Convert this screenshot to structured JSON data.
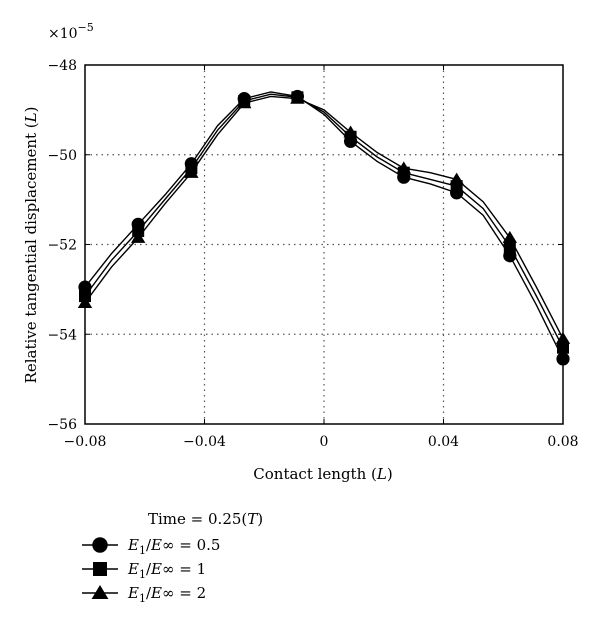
{
  "chart_data": {
    "type": "line",
    "title": "",
    "xlabel": "Contact length (L)",
    "ylabel": "Relative tangential displacement (L)",
    "y_multiplier": "×10−5",
    "xlim": [
      -0.08,
      0.08
    ],
    "ylim": [
      -56,
      -48
    ],
    "x_ticks": [
      -0.08,
      -0.04,
      0,
      0.04,
      0.08
    ],
    "x_tick_labels": [
      "−0.08",
      "−0.04",
      "0",
      "0.04",
      "0.08"
    ],
    "y_ticks": [
      -56,
      -54,
      -52,
      -50,
      -48
    ],
    "y_tick_labels": [
      "−56",
      "−54",
      "−52",
      "−50",
      "−48"
    ],
    "grid": "dotted",
    "legend_title": "Time = 0.25(T)",
    "legend_position": "bottom-left",
    "series": [
      {
        "name": "E1/E∞ = 0.5",
        "marker": "circle",
        "x": [
          -0.08,
          -0.0711,
          -0.0622,
          -0.0533,
          -0.0444,
          -0.0356,
          -0.0267,
          -0.0178,
          -0.0089,
          0.0,
          0.0089,
          0.0178,
          0.0267,
          0.0356,
          0.0444,
          0.0533,
          0.0622,
          0.0711,
          0.08
        ],
        "y": [
          -52.95,
          -52.2,
          -51.55,
          -50.9,
          -50.2,
          -49.35,
          -48.75,
          -48.6,
          -48.7,
          -49.1,
          -49.7,
          -50.15,
          -50.5,
          -50.65,
          -50.85,
          -51.35,
          -52.25,
          -53.35,
          -54.55
        ]
      },
      {
        "name": "E1/E∞ = 1",
        "marker": "square",
        "x": [
          -0.08,
          -0.0711,
          -0.0622,
          -0.0533,
          -0.0444,
          -0.0356,
          -0.0267,
          -0.0178,
          -0.0089,
          0.0,
          0.0089,
          0.0178,
          0.0267,
          0.0356,
          0.0444,
          0.0533,
          0.0622,
          0.0711,
          0.08
        ],
        "y": [
          -53.15,
          -52.35,
          -51.7,
          -51.0,
          -50.3,
          -49.45,
          -48.8,
          -48.65,
          -48.72,
          -49.05,
          -49.6,
          -50.05,
          -50.4,
          -50.55,
          -50.7,
          -51.2,
          -52.05,
          -53.15,
          -54.3
        ]
      },
      {
        "name": "E1/E∞ = 2",
        "marker": "triangle",
        "x": [
          -0.08,
          -0.0711,
          -0.0622,
          -0.0533,
          -0.0444,
          -0.0356,
          -0.0267,
          -0.0178,
          -0.0089,
          0.0,
          0.0089,
          0.0178,
          0.0267,
          0.0356,
          0.0444,
          0.0533,
          0.0622,
          0.0711,
          0.08
        ],
        "y": [
          -53.3,
          -52.5,
          -51.85,
          -51.1,
          -50.4,
          -49.55,
          -48.85,
          -48.7,
          -48.75,
          -49.0,
          -49.5,
          -49.95,
          -50.3,
          -50.4,
          -50.55,
          -51.05,
          -51.85,
          -52.95,
          -54.1
        ]
      }
    ],
    "marker_indices": [
      0,
      2,
      4,
      6,
      8,
      10,
      12,
      14,
      16,
      18
    ]
  }
}
